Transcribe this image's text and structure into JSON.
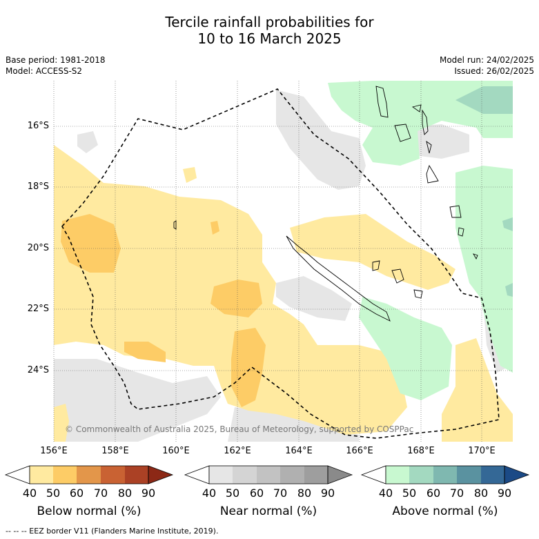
{
  "title": {
    "line1": "Tercile rainfall probabilities for",
    "line2": "10 to 16 March 2025"
  },
  "meta": {
    "base_period": "Base period: 1981-2018",
    "model": "Model: ACCESS-S2",
    "model_run": "Model run: 24/02/2025",
    "issued": "Issued: 26/02/2025"
  },
  "map": {
    "lat_ticks": [
      "16°S",
      "18°S",
      "20°S",
      "22°S",
      "24°S"
    ],
    "lon_ticks": [
      "156°E",
      "158°E",
      "160°E",
      "162°E",
      "164°E",
      "166°E",
      "168°E",
      "170°E"
    ],
    "copyright": "© Commonwealth of Australia 2025, Bureau of Meteorology, supported by COSPPac"
  },
  "colorbars": [
    {
      "label": "Below normal (%)",
      "ticks": [
        "40",
        "50",
        "60",
        "70",
        "80",
        "90"
      ],
      "colors": [
        "#ffffff",
        "#ffeaa0",
        "#fdcc66",
        "#e3964a",
        "#c96233",
        "#ab4125",
        "#8c2816"
      ]
    },
    {
      "label": "Near normal (%)",
      "ticks": [
        "40",
        "50",
        "60",
        "70",
        "80",
        "90"
      ],
      "colors": [
        "#ffffff",
        "#e6e6e6",
        "#d4d4d4",
        "#c2c2c2",
        "#b0b0b0",
        "#9e9e9e",
        "#8a8a8a"
      ]
    },
    {
      "label": "Above normal (%)",
      "ticks": [
        "40",
        "50",
        "60",
        "70",
        "80",
        "90"
      ],
      "colors": [
        "#ffffff",
        "#c8f8d0",
        "#a3d9c0",
        "#7fb8b0",
        "#5a92a0",
        "#346896",
        "#1b4a86"
      ]
    }
  ],
  "footer": "--  --  -- EEZ border V11 (Flanders Marine Institute, 2019)."
}
